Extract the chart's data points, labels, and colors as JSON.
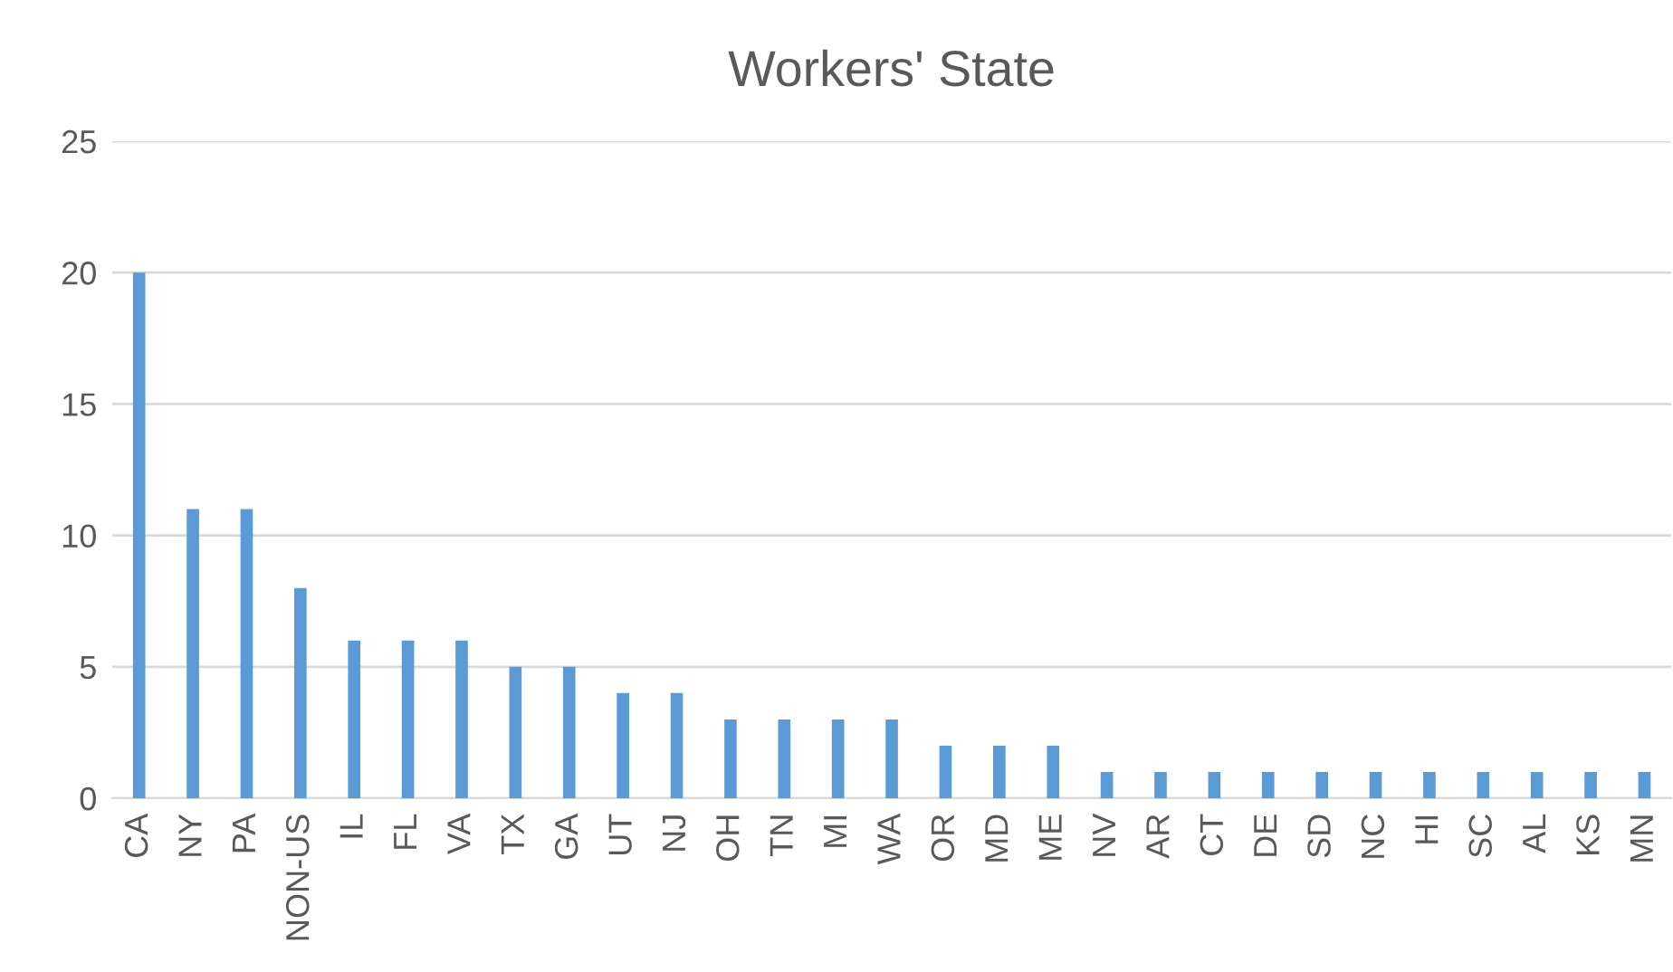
{
  "chart_data": {
    "type": "bar",
    "title": "Workers' State",
    "categories": [
      "CA",
      "NY",
      "PA",
      "NON-US",
      "IL",
      "FL",
      "VA",
      "TX",
      "GA",
      "UT",
      "NJ",
      "OH",
      "TN",
      "MI",
      "WA",
      "OR",
      "MD",
      "ME",
      "NV",
      "AR",
      "CT",
      "DE",
      "SD",
      "NC",
      "HI",
      "SC",
      "AL",
      "KS",
      "MN"
    ],
    "values": [
      20,
      11,
      11,
      8,
      6,
      6,
      6,
      5,
      5,
      4,
      4,
      3,
      3,
      3,
      3,
      2,
      2,
      2,
      1,
      1,
      1,
      1,
      1,
      1,
      1,
      1,
      1,
      1,
      1
    ],
    "color": "#5b9bd5",
    "ylim": [
      0,
      25
    ],
    "yticks": [
      0,
      5,
      10,
      15,
      20,
      25
    ],
    "grid": "y"
  }
}
